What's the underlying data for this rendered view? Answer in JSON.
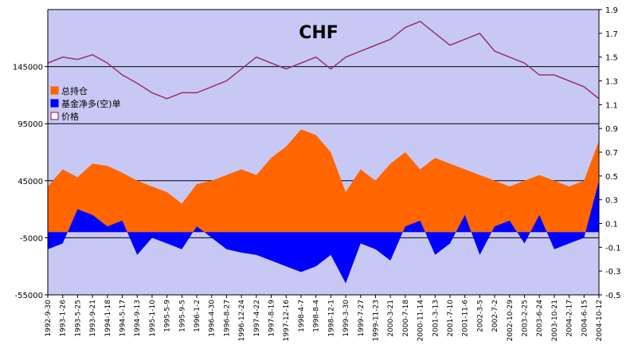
{
  "chart_data": {
    "type": "area",
    "title": "CHF",
    "xlabel": "",
    "ylabel": "",
    "ylim": [
      -55000,
      195000
    ],
    "y2lim": [
      -0.5,
      1.9
    ],
    "yticks": [
      -55000,
      -5000,
      45000,
      95000,
      145000
    ],
    "yticks_labels": [
      "-55000",
      "-5000",
      "45000",
      "95000",
      "145000"
    ],
    "y2ticks": [
      -0.5,
      -0.3,
      -0.1,
      0.1,
      0.3,
      0.5,
      0.7,
      0.9,
      1.1,
      1.3,
      1.5,
      1.7,
      1.9
    ],
    "y2ticks_labels": [
      "-0.5",
      "-0.3",
      "-0.1",
      "0.1",
      "0.3",
      "0.5",
      "0.7",
      "0.9",
      "1.1",
      "1.3",
      "1.5",
      "1.7",
      "1.9"
    ],
    "hgrid_values": [
      -5000,
      45000,
      95000,
      145000
    ],
    "categories": [
      "1992-9-30",
      "1993-1-26",
      "1993-5-25",
      "1993-9-21",
      "1994-1-18",
      "1994-5-17",
      "1994-9-13",
      "1995-1-10",
      "1995-5-9",
      "1995-9-5",
      "1996-1-2",
      "1996-4-30",
      "1996-8-27",
      "1996-12-24",
      "1997-4-22",
      "1997-8-19",
      "1997-12-16",
      "1998-4-7",
      "1998-8-4",
      "1998-12-1",
      "1999-3-30",
      "1999-7-27",
      "1999-11-23",
      "2000-3-21",
      "2000-7-18",
      "2000-11-14",
      "2001-3-13",
      "2001-7-10",
      "2001-11-6",
      "2002-3-5",
      "2002-7-2",
      "2002-10-29",
      "2003-2-25",
      "2003-6-24",
      "2003-10-21",
      "2004-2-17",
      "2004-6-15",
      "2004-10-12"
    ],
    "legend": {
      "placement": "left",
      "entries": [
        "总持仓",
        "基金净多(空)单",
        "价格"
      ]
    },
    "colors": {
      "background": "#c8c8f5",
      "total": "#ff6600",
      "net": "#0000ff",
      "price": "#993366",
      "grid": "#000000"
    },
    "series": [
      {
        "name": "总持仓",
        "axis": "left",
        "values": [
          40000,
          55000,
          48000,
          60000,
          58000,
          52000,
          45000,
          40000,
          35000,
          25000,
          42000,
          45000,
          50000,
          55000,
          50000,
          65000,
          75000,
          90000,
          85000,
          70000,
          35000,
          55000,
          45000,
          60000,
          70000,
          55000,
          65000,
          60000,
          55000,
          50000,
          45000,
          40000,
          45000,
          50000,
          45000,
          40000,
          45000,
          80000
        ]
      },
      {
        "name": "基金净多(空)单",
        "axis": "left",
        "values": [
          -15000,
          -10000,
          20000,
          15000,
          5000,
          10000,
          -20000,
          -5000,
          -10000,
          -15000,
          5000,
          -5000,
          -15000,
          -18000,
          -20000,
          -25000,
          -30000,
          -35000,
          -30000,
          -20000,
          -45000,
          -10000,
          -15000,
          -25000,
          5000,
          10000,
          -20000,
          -10000,
          15000,
          -20000,
          5000,
          10000,
          -10000,
          15000,
          -15000,
          -10000,
          -5000,
          45000
        ]
      },
      {
        "name": "价格",
        "axis": "right",
        "values": [
          1.45,
          1.5,
          1.48,
          1.52,
          1.45,
          1.35,
          1.28,
          1.2,
          1.15,
          1.2,
          1.2,
          1.25,
          1.3,
          1.4,
          1.5,
          1.45,
          1.4,
          1.45,
          1.5,
          1.4,
          1.5,
          1.55,
          1.6,
          1.65,
          1.75,
          1.8,
          1.7,
          1.6,
          1.65,
          1.7,
          1.55,
          1.5,
          1.45,
          1.35,
          1.35,
          1.3,
          1.25,
          1.15
        ]
      }
    ]
  }
}
